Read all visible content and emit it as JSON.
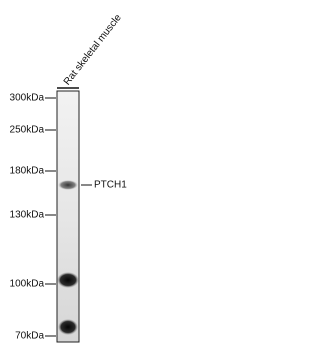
{
  "lane_label": "Rat skeletal muscle",
  "markers": [
    "300kDa",
    "250kDa",
    "180kDa",
    "130kDa",
    "100kDa",
    "70kDa"
  ],
  "band_label": "PTCH1"
}
